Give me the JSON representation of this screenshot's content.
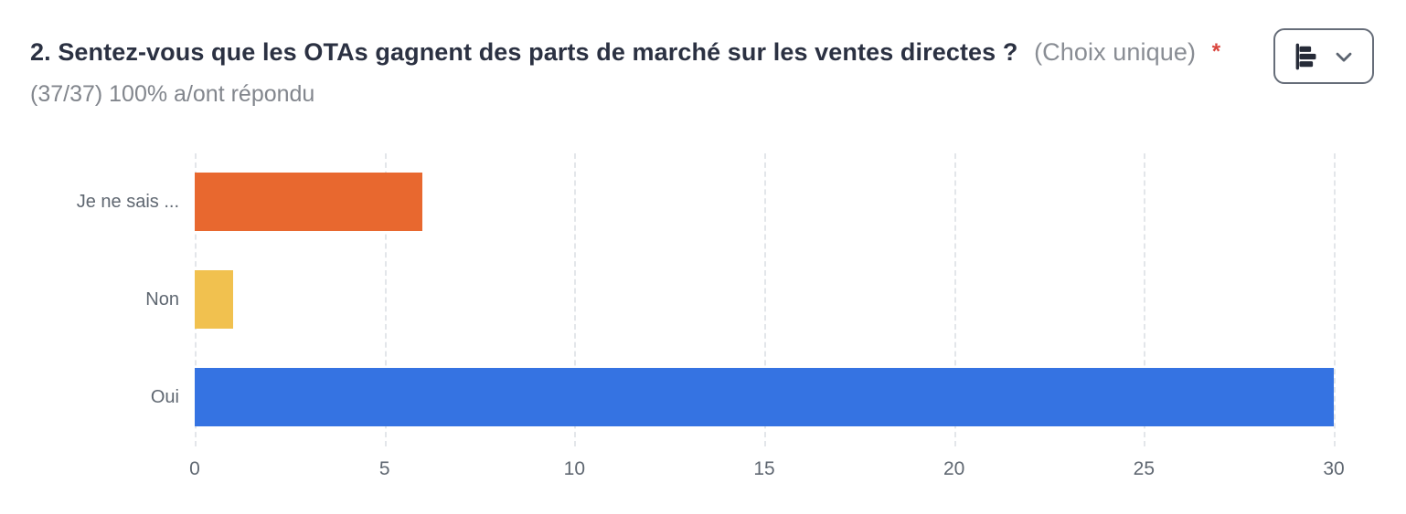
{
  "header": {
    "title": "2. Sentez-vous que les OTAs gagnent des parts de marché sur les ventes directes ?",
    "choice_type": "(Choix unique)",
    "required_marker": "*",
    "response_stats": "(37/37) 100% a/ont répondu"
  },
  "toolbar": {
    "chart_type_icon": "horizontal-bar-chart-icon",
    "dropdown_icon": "chevron-down-icon"
  },
  "theme": {
    "title_color": "#2B3142",
    "muted_text_color": "#82868D",
    "label_color": "#5F6771",
    "required_color": "#D9453D",
    "gridline_color": "#E3E6EA",
    "button_border_color": "#666D79",
    "bar_orange": "#E8682F",
    "bar_yellow": "#F1C14F",
    "bar_blue": "#3573E2"
  },
  "chart_data": {
    "type": "bar",
    "orientation": "horizontal",
    "title": "2. Sentez-vous que les OTAs gagnent des parts de marché sur les ventes directes ?",
    "subtitle": "(37/37) 100% a/ont répondu",
    "categories": [
      "Je ne sais ...",
      "Non",
      "Oui"
    ],
    "values": [
      6,
      1,
      30
    ],
    "colors": [
      "#E8682F",
      "#F1C14F",
      "#3573E2"
    ],
    "xlabel": "",
    "ylabel": "",
    "xlim": [
      0,
      30
    ],
    "xticks": [
      0,
      5,
      10,
      15,
      20,
      25,
      30
    ],
    "grid": "vertical-dashed",
    "legend": "none"
  }
}
